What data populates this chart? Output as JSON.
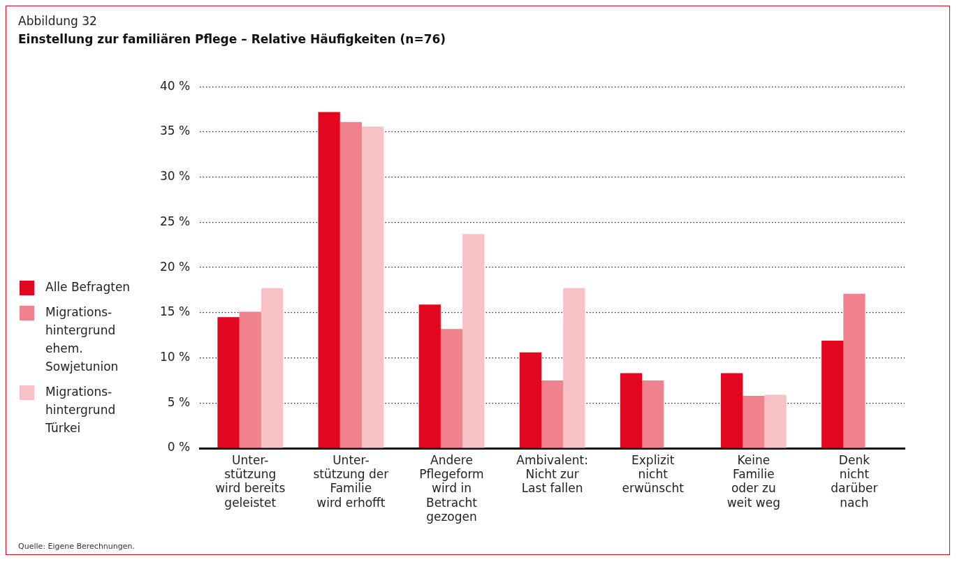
{
  "chart_data": {
    "type": "bar",
    "title": "Abbildung 32",
    "subtitle": "Einstellung zur familiären Pflege – Relative Häufigkeiten (n=76)",
    "categories": [
      "Unter-\nstützung\nwird bereits\ngeleistet",
      "Unter-\nstützung der\nFamilie\nwird erhofft",
      "Andere\nPflegeform\nwird in\nBetracht\ngezogen",
      "Ambivalent:\nNicht zur\nLast fallen",
      "Explizit\nnicht\nerwünscht",
      "Keine\nFamilie\noder zu\nweit weg",
      "Denk\nnicht\ndarüber\nnach"
    ],
    "series": [
      {
        "name": "Alle Befragten",
        "color": "#e2061e",
        "values": [
          14.5,
          37.2,
          15.9,
          10.6,
          8.3,
          8.3,
          11.9
        ]
      },
      {
        "name": "Migrations-\nhintergrund\nehem.\nSowjetunion",
        "color": "#f0828d",
        "values": [
          15.1,
          36.1,
          13.2,
          7.5,
          7.5,
          5.8,
          17.1
        ]
      },
      {
        "name": "Migrations-\nhintergrund\nTürkei",
        "color": "#f8c1c6",
        "values": [
          17.7,
          35.6,
          23.7,
          17.7,
          null,
          5.9,
          null
        ]
      }
    ],
    "ylim": [
      0,
      40
    ],
    "yticks": [
      {
        "value": 0,
        "label": "0 %"
      },
      {
        "value": 5,
        "label": "5 %"
      },
      {
        "value": 10,
        "label": "10 %"
      },
      {
        "value": 15,
        "label": "15 %"
      },
      {
        "value": 20,
        "label": "20 %"
      },
      {
        "value": 25,
        "label": "25 %"
      },
      {
        "value": 30,
        "label": "30 %"
      },
      {
        "value": 35,
        "label": "35 %"
      },
      {
        "value": 40,
        "label": "40 %"
      }
    ],
    "grid": "y",
    "legend": "left",
    "annotations": [
      "Quelle: Eigene Berechnungen."
    ]
  }
}
